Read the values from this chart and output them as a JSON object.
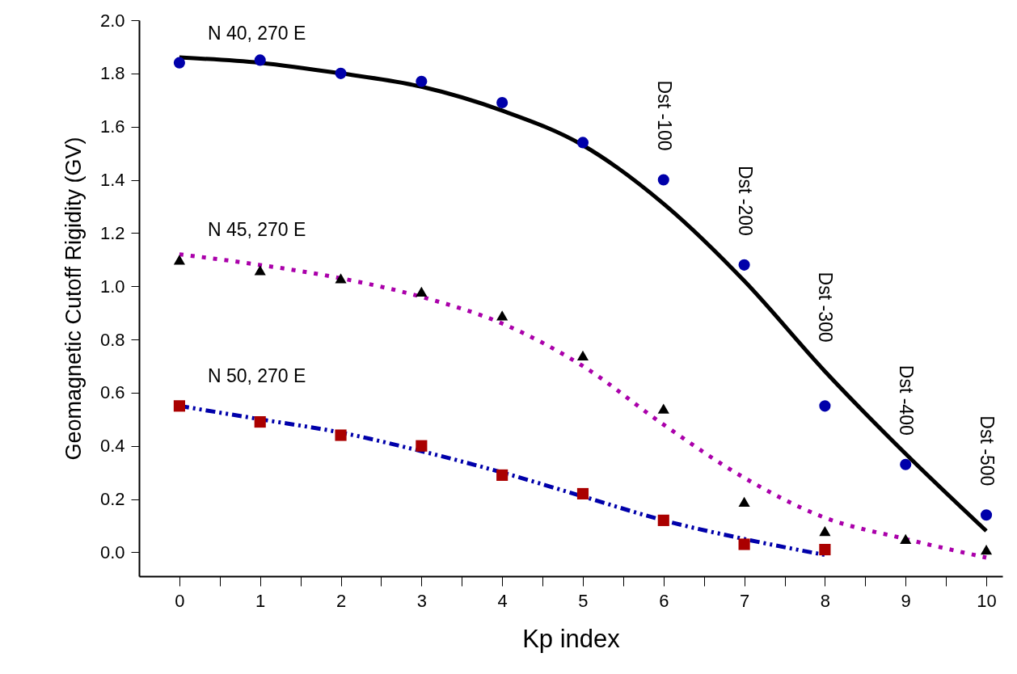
{
  "chart_data": {
    "type": "scatter",
    "xlabel": "Kp  index",
    "ylabel": "Geomagnetic  Cutoff  Rigidity   (GV)",
    "xlim": [
      -0.5,
      10.2
    ],
    "ylim": [
      -0.09,
      2.0
    ],
    "xticks": [
      0,
      {
        "value": 0.5,
        "label": null
      },
      1,
      {
        "value": 1.5,
        "label": null
      },
      2,
      {
        "value": 2.5,
        "label": null
      },
      3,
      {
        "value": 3.5,
        "label": null
      },
      4,
      {
        "value": 4.5,
        "label": null
      },
      5,
      {
        "value": 5.5,
        "label": null
      },
      6,
      {
        "value": 6.5,
        "label": null
      },
      7,
      {
        "value": 7.5,
        "label": null
      },
      8,
      {
        "value": 8.5,
        "label": null
      },
      9,
      {
        "value": 9.5,
        "label": null
      },
      10
    ],
    "yticks": [
      {
        "value": 0,
        "label": "0.0"
      },
      0.2,
      0.4,
      0.6,
      0.8,
      {
        "value": 1,
        "label": "1.0"
      },
      1.2,
      1.4,
      1.6,
      1.8,
      {
        "value": 2,
        "label": "2.0"
      }
    ],
    "grid": false,
    "series": [
      {
        "type": "line",
        "color": "#000000",
        "line_style": "solid",
        "marker": "none",
        "x": [
          0,
          1,
          2,
          3,
          4,
          5,
          6,
          7,
          8,
          9,
          10
        ],
        "values": [
          1.86,
          1.84,
          1.8,
          1.75,
          1.66,
          1.53,
          1.31,
          1.02,
          0.68,
          0.37,
          0.08
        ]
      },
      {
        "type": "line",
        "color": "#aa00aa",
        "line_style": "dotted",
        "marker": "none",
        "x": [
          0,
          1,
          2,
          3,
          4,
          5,
          6,
          7,
          8,
          9,
          10
        ],
        "values": [
          1.12,
          1.08,
          1.03,
          0.96,
          0.86,
          0.7,
          0.48,
          0.28,
          0.13,
          0.05,
          -0.02
        ]
      },
      {
        "type": "line",
        "color": "#0000aa",
        "line_style": "dashed",
        "marker": "none",
        "x": [
          0,
          1,
          2,
          3,
          4,
          5,
          6,
          7,
          8
        ],
        "values": [
          0.55,
          0.5,
          0.45,
          0.38,
          0.3,
          0.21,
          0.12,
          0.05,
          -0.01
        ]
      },
      {
        "color": "#0000aa",
        "marker": "circle",
        "x": [
          0,
          1,
          2,
          3,
          4,
          5,
          6,
          7,
          8,
          9,
          10
        ],
        "values": [
          1.84,
          1.85,
          1.8,
          1.77,
          1.69,
          1.54,
          1.4,
          1.08,
          0.55,
          0.33,
          0.14
        ]
      },
      {
        "color": "#000000",
        "marker": "triangle",
        "x": [
          0,
          1,
          2,
          3,
          4,
          5,
          6,
          7,
          8,
          9,
          10
        ],
        "values": [
          1.1,
          1.06,
          1.03,
          0.98,
          0.89,
          0.74,
          0.54,
          0.19,
          0.08,
          0.05,
          0.01
        ]
      },
      {
        "color": "#aa0000",
        "marker": "square",
        "x": [
          0,
          1,
          2,
          3,
          4,
          5,
          6,
          7,
          8
        ],
        "values": [
          0.55,
          0.49,
          0.44,
          0.4,
          0.29,
          0.22,
          0.12,
          0.03,
          0.01
        ]
      }
    ],
    "annotations": [
      "N 40,  270 E",
      "N 45,  270 E",
      "N 50,  270 E",
      {
        "text": "Dst -100",
        "x": 6,
        "y": 1.4
      },
      {
        "text": "Dst -200",
        "x": 7,
        "y": 1.08
      },
      {
        "text": "Dst -300",
        "x": 8,
        "y": 0.68
      },
      {
        "text": "Dst -400",
        "x": 9,
        "y": 0.33
      },
      {
        "text": "Dst -500",
        "x": 10,
        "y": 0.14
      }
    ]
  }
}
